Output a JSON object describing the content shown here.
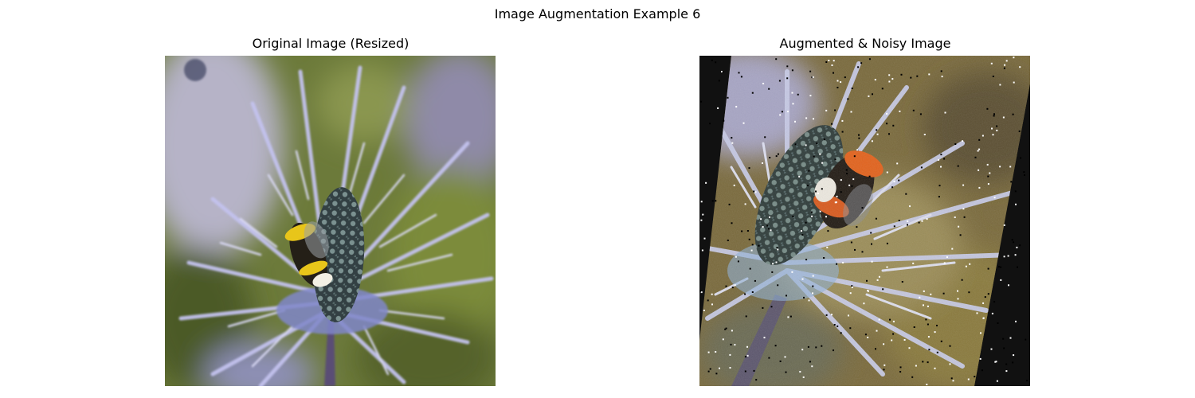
{
  "figure": {
    "title": "Image Augmentation Example 6"
  },
  "panels": {
    "left": {
      "title": "Original Image (Resized)",
      "content": "photo-thistle-with-bumblebee"
    },
    "right": {
      "title": "Augmented & Noisy Image",
      "content": "rotated-noisy-photo-thistle-with-bumblebee"
    }
  },
  "colors": {
    "background_blur_green": "#6f7d3c",
    "thistle_lavender": "#b8b6e6",
    "flower_head": "#3e4a4c",
    "bee_orange": "#e2621c",
    "bee_yellow": "#e8c51a",
    "rotation_fill": "#111111"
  }
}
